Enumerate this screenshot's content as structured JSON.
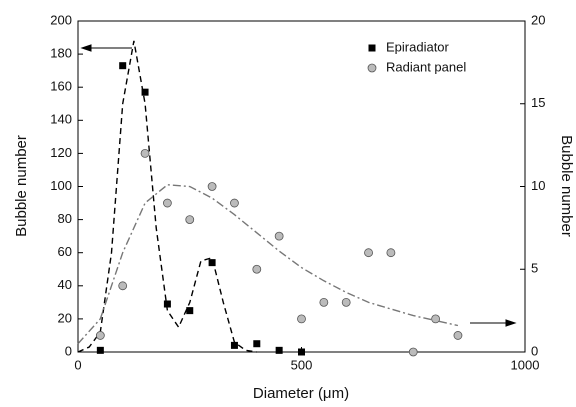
{
  "chart_data": {
    "type": "scatter",
    "xlabel": "Diameter (μm)",
    "ylabel": "Bubble number",
    "y2label": "Bubble number",
    "xlim": [
      0,
      1000
    ],
    "xticks": [
      0,
      500,
      1000
    ],
    "ylim": [
      0,
      200
    ],
    "yticks": [
      0,
      20,
      40,
      60,
      80,
      100,
      120,
      140,
      160,
      180,
      200
    ],
    "y2lim": [
      0,
      20
    ],
    "y2ticks": [
      0,
      5,
      10,
      15,
      20
    ],
    "legend": "upper right",
    "series": [
      {
        "name": "Epiradiator",
        "color": "#000000",
        "marker": "square",
        "x": [
          50,
          100,
          150,
          200,
          250,
          300,
          350,
          400,
          450,
          500
        ],
        "values": [
          1,
          173,
          157,
          29,
          25,
          54,
          4,
          5,
          1,
          0
        ]
      },
      {
        "name": "Radiant panel",
        "color": "#bbbbbb",
        "marker": "circle",
        "axis": "y2",
        "x": [
          50,
          100,
          150,
          200,
          250,
          300,
          350,
          400,
          450,
          500,
          550,
          600,
          650,
          700,
          750,
          800,
          850
        ],
        "values": [
          1,
          4,
          12,
          9,
          8,
          10,
          9,
          5,
          7,
          2,
          3,
          3,
          6,
          6,
          0,
          2,
          1
        ]
      }
    ],
    "fits": [
      {
        "color": "#000000",
        "style": "dash",
        "x": [
          0,
          25,
          50,
          75,
          100,
          125,
          150,
          175,
          200,
          225,
          250,
          275,
          300,
          325,
          350,
          375,
          400
        ],
        "values": [
          0,
          3,
          12,
          60,
          150,
          188,
          150,
          75,
          25,
          15,
          30,
          55,
          57,
          30,
          6,
          1,
          0
        ]
      },
      {
        "color": "#777777",
        "style": "dashdot",
        "axis": "y2",
        "x": [
          0,
          50,
          100,
          150,
          200,
          250,
          300,
          350,
          400,
          450,
          500,
          550,
          600,
          650,
          700,
          750,
          800,
          850
        ],
        "values": [
          0.5,
          2,
          6,
          9,
          10.1,
          10,
          9.3,
          8.3,
          7.2,
          6.1,
          5.1,
          4.3,
          3.6,
          3,
          2.6,
          2.2,
          1.9,
          1.6
        ]
      }
    ]
  }
}
